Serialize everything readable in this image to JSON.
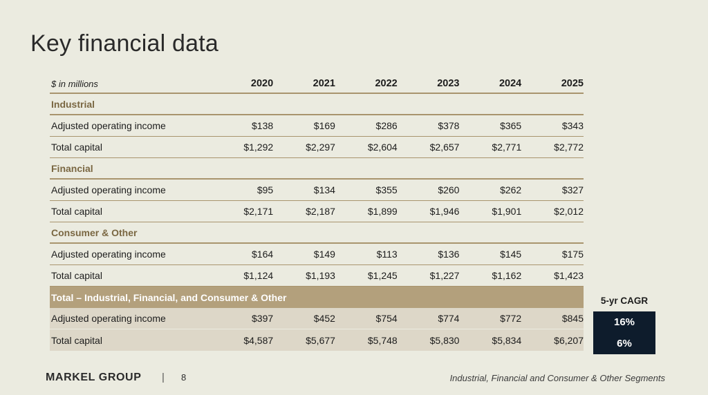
{
  "title": "Key financial data",
  "table": {
    "unit_label": "$ in millions",
    "years": [
      "2020",
      "2021",
      "2022",
      "2023",
      "2024",
      "2025"
    ],
    "sections": [
      {
        "name": "Industrial",
        "rows": [
          {
            "label": "Adjusted operating income",
            "values": [
              "$138",
              "$169",
              "$286",
              "$378",
              "$365",
              "$343"
            ]
          },
          {
            "label": "Total capital",
            "values": [
              "$1,292",
              "$2,297",
              "$2,604",
              "$2,657",
              "$2,771",
              "$2,772"
            ]
          }
        ]
      },
      {
        "name": "Financial",
        "rows": [
          {
            "label": "Adjusted operating income",
            "values": [
              "$95",
              "$134",
              "$355",
              "$260",
              "$262",
              "$327"
            ]
          },
          {
            "label": "Total capital",
            "values": [
              "$2,171",
              "$2,187",
              "$1,899",
              "$1,946",
              "$1,901",
              "$2,012"
            ]
          }
        ]
      },
      {
        "name": "Consumer & Other",
        "rows": [
          {
            "label": "Adjusted operating income",
            "values": [
              "$164",
              "$149",
              "$113",
              "$136",
              "$145",
              "$175"
            ]
          },
          {
            "label": "Total capital",
            "values": [
              "$1,124",
              "$1,193",
              "$1,245",
              "$1,227",
              "$1,162",
              "$1,423"
            ]
          }
        ]
      },
      {
        "name": "Total – Industrial, Financial, and Consumer & Other",
        "rows": [
          {
            "label": "Adjusted operating income",
            "values": [
              "$397",
              "$452",
              "$754",
              "$774",
              "$772",
              "$845"
            ]
          },
          {
            "label": "Total capital",
            "values": [
              "$4,587",
              "$5,677",
              "$5,748",
              "$5,830",
              "$5,834",
              "$6,207"
            ]
          }
        ]
      }
    ]
  },
  "cagr": {
    "header": "5-yr CAGR",
    "values": [
      "16%",
      "6%"
    ]
  },
  "footer": {
    "logo": "MARKEL GROUP",
    "separator": "|",
    "page": "8",
    "note": "Industrial, Financial and Consumer & Other Segments"
  },
  "colors": {
    "background": "#ebebe0",
    "accent": "#a8946d",
    "total_band": "#b3a07c",
    "cagr_box": "#0e1c2c"
  }
}
